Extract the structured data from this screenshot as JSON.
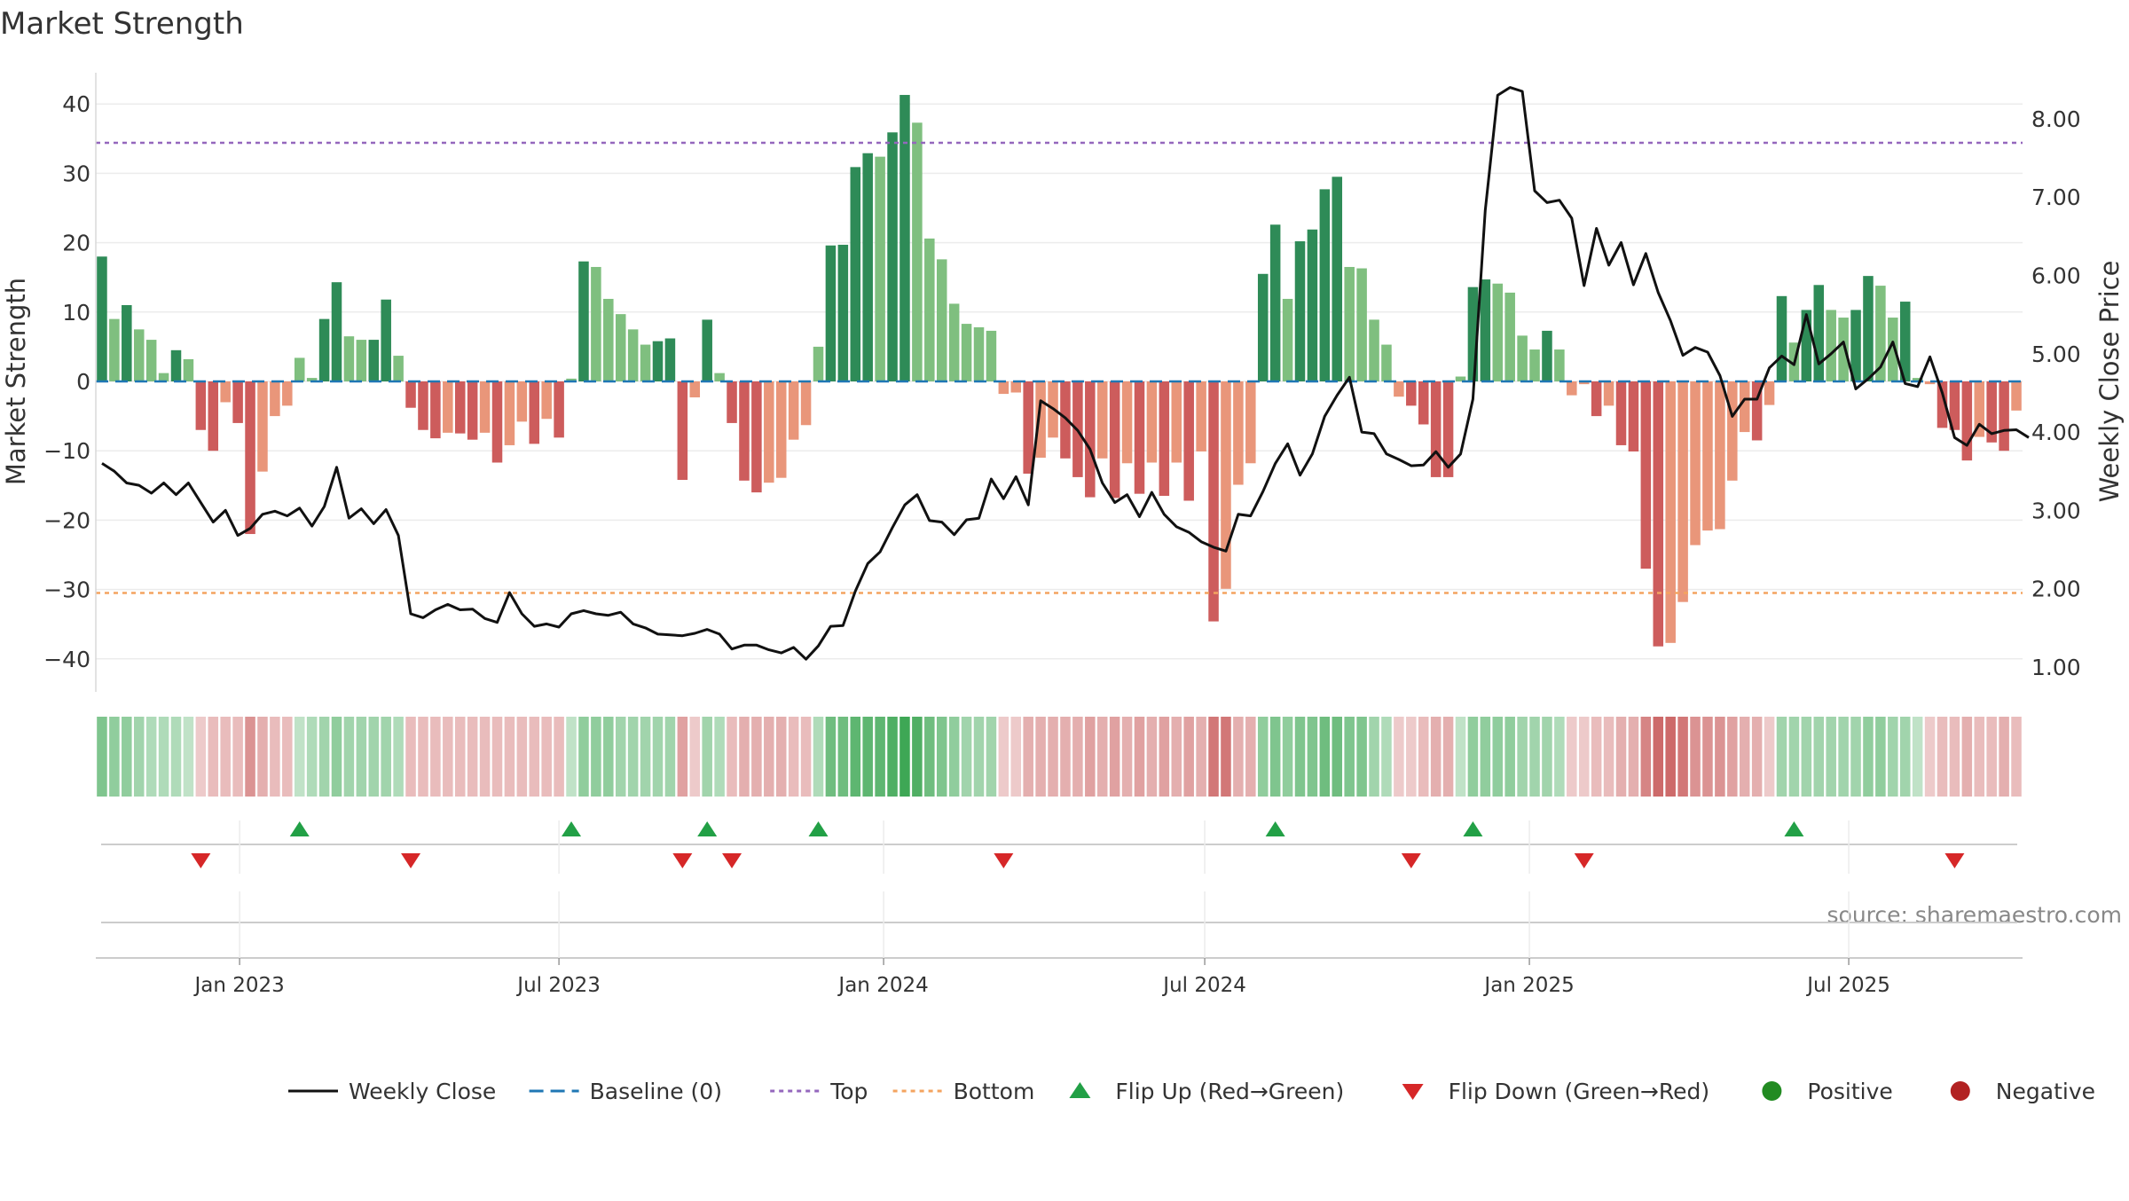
{
  "chart_data": {
    "type": "bar",
    "title": "Market Strength",
    "ylabel_left": "Market Strength",
    "ylabel_right": "Weekly Close Price",
    "source": "source: sharemaestro.com",
    "ylim_left": [
      -45,
      45
    ],
    "ylim_right": [
      0.7,
      8.6
    ],
    "yticks_left": [
      40,
      30,
      20,
      10,
      0,
      -10,
      -20,
      -30,
      -40
    ],
    "yticks_right": [
      "8.00",
      "7.00",
      "6.00",
      "5.00",
      "4.00",
      "3.00",
      "2.00",
      "1.00"
    ],
    "x_start": "2022-10-15",
    "x_step_days": 7,
    "x_ticks": [
      {
        "label": "Jan 2023",
        "date": "2023-01-01"
      },
      {
        "label": "Jul 2023",
        "date": "2023-07-01"
      },
      {
        "label": "Jan 2024",
        "date": "2024-01-01"
      },
      {
        "label": "Jul 2024",
        "date": "2024-07-01"
      },
      {
        "label": "Jan 2025",
        "date": "2025-01-01"
      },
      {
        "label": "Jul 2025",
        "date": "2025-07-01"
      }
    ],
    "top_line": 34.4,
    "bottom_line": -30.5,
    "grid": true,
    "legend_position": "bottom-center",
    "colors": {
      "pos_strong": "#2e8b57",
      "pos_weak": "#7fbf7f",
      "neg_strong": "#cd5c5c",
      "neg_weak": "#e9967a",
      "close_line": "#111111",
      "baseline": "#1f77b4",
      "top": "#9467bd",
      "bottom": "#f4a460",
      "flip_up": "#22a046",
      "flip_down": "#d62728",
      "positive": "#228b22",
      "negative": "#b22222"
    },
    "strength": [
      18,
      9,
      11,
      7.5,
      6,
      1.2,
      4.5,
      3.2,
      -7,
      -10,
      -3,
      -6,
      -22,
      -13,
      -5,
      -3.5,
      3.4,
      0.5,
      9,
      14.3,
      6.5,
      6,
      6,
      11.8,
      3.7,
      -3.8,
      -7,
      -8.2,
      -7.4,
      -7.5,
      -8.4,
      -7.4,
      -11.7,
      -9.2,
      -5.8,
      -9,
      -5.4,
      -8.1,
      0.4,
      17.3,
      16.5,
      11.9,
      9.7,
      7.5,
      5.3,
      5.8,
      6.2,
      -14.2,
      -2.3,
      8.9,
      1.2,
      -6,
      -14.3,
      -16,
      -14.6,
      -13.9,
      -8.4,
      -6.3,
      5,
      19.6,
      19.7,
      30.9,
      32.9,
      32.4,
      35.9,
      41.3,
      37.3,
      20.6,
      17.6,
      11.2,
      8.3,
      7.8,
      7.3,
      -1.8,
      -1.6,
      -13.3,
      -11,
      -8.1,
      -11.1,
      -13.8,
      -16.7,
      -11.1,
      -16.8,
      -11.8,
      -16.2,
      -11.7,
      -16.5,
      -11.7,
      -17.2,
      -10.1,
      -34.6,
      -29.9,
      -14.9,
      -11.8,
      15.5,
      22.6,
      11.9,
      20.2,
      21.9,
      27.7,
      29.5,
      16.5,
      16.3,
      8.9,
      5.3,
      -2.2,
      -3.5,
      -6.2,
      -13.8,
      -13.8,
      0.7,
      13.6,
      14.7,
      14.1,
      12.8,
      6.6,
      4.6,
      7.3,
      4.6,
      -2,
      -0.4,
      -5,
      -3.5,
      -9.2,
      -10.1,
      -27,
      -38.2,
      -37.7,
      -31.8,
      -23.6,
      -21.5,
      -21.3,
      -14.3,
      -7.3,
      -8.5,
      -3.4,
      12.3,
      5.6,
      10.3,
      13.9,
      10.3,
      9.2,
      10.3,
      15.2,
      13.8,
      9.2,
      11.5,
      0.5,
      -0.4,
      -6.7,
      -7,
      -11.4,
      -8,
      -8.8,
      -10,
      -4.2
    ],
    "close": [
      3.6,
      3.5,
      3.35,
      3.32,
      3.22,
      3.35,
      3.2,
      3.35,
      3.1,
      2.85,
      3.0,
      2.68,
      2.77,
      2.95,
      2.99,
      2.93,
      3.03,
      2.8,
      3.05,
      3.55,
      2.9,
      3.02,
      2.83,
      3.01,
      2.68,
      1.68,
      1.63,
      1.73,
      1.8,
      1.73,
      1.74,
      1.62,
      1.57,
      1.95,
      1.68,
      1.52,
      1.55,
      1.51,
      1.68,
      1.72,
      1.68,
      1.66,
      1.7,
      1.55,
      1.5,
      1.42,
      1.41,
      1.4,
      1.43,
      1.48,
      1.42,
      1.23,
      1.28,
      1.28,
      1.22,
      1.18,
      1.25,
      1.1,
      1.27,
      1.52,
      1.53,
      1.97,
      2.32,
      2.47,
      2.78,
      3.07,
      3.2,
      2.87,
      2.85,
      2.69,
      2.88,
      2.9,
      3.4,
      3.15,
      3.43,
      3.07,
      4.4,
      4.3,
      4.18,
      4.02,
      3.78,
      3.35,
      3.1,
      3.2,
      2.92,
      3.23,
      2.95,
      2.79,
      2.72,
      2.6,
      2.53,
      2.48,
      2.95,
      2.93,
      3.24,
      3.6,
      3.85,
      3.45,
      3.72,
      4.2,
      4.47,
      4.7,
      4.0,
      3.98,
      3.72,
      3.65,
      3.57,
      3.58,
      3.75,
      3.55,
      3.72,
      4.42,
      6.83,
      8.3,
      8.4,
      8.35,
      7.08,
      6.93,
      6.96,
      6.73,
      5.87,
      6.6,
      6.13,
      6.42,
      5.88,
      6.28,
      5.78,
      5.42,
      4.98,
      5.08,
      5.02,
      4.72,
      4.2,
      4.42,
      4.42,
      4.82,
      4.97,
      4.86,
      5.5,
      4.87,
      5.0,
      5.15,
      4.55,
      4.68,
      4.83,
      5.15,
      4.62,
      4.58,
      4.96,
      4.5,
      3.93,
      3.83,
      4.1,
      3.98,
      4.02,
      4.03,
      3.93
    ],
    "bands": [
      0.5,
      0.4,
      0.4,
      0.3,
      0.2,
      0.2,
      0.2,
      0.1,
      -0.1,
      -0.2,
      -0.2,
      -0.2,
      -0.5,
      -0.3,
      -0.2,
      -0.2,
      0.1,
      0.2,
      0.3,
      0.4,
      0.3,
      0.3,
      0.3,
      0.3,
      0.2,
      -0.2,
      -0.2,
      -0.2,
      -0.2,
      -0.2,
      -0.2,
      -0.2,
      -0.2,
      -0.2,
      -0.2,
      -0.2,
      -0.2,
      -0.2,
      0.1,
      0.4,
      0.4,
      0.4,
      0.3,
      0.3,
      0.3,
      0.3,
      0.3,
      -0.4,
      -0.1,
      0.3,
      0.2,
      -0.2,
      -0.3,
      -0.3,
      -0.3,
      -0.3,
      -0.2,
      -0.2,
      0.2,
      0.6,
      0.6,
      0.7,
      0.7,
      0.7,
      0.8,
      0.9,
      0.8,
      0.6,
      0.5,
      0.4,
      0.3,
      0.3,
      0.3,
      -0.1,
      -0.1,
      -0.3,
      -0.3,
      -0.3,
      -0.3,
      -0.3,
      -0.4,
      -0.3,
      -0.4,
      -0.3,
      -0.4,
      -0.3,
      -0.4,
      -0.3,
      -0.4,
      -0.3,
      -0.7,
      -0.7,
      -0.3,
      -0.3,
      0.4,
      0.5,
      0.4,
      0.5,
      0.5,
      0.6,
      0.6,
      0.5,
      0.5,
      0.3,
      0.2,
      -0.1,
      -0.1,
      -0.2,
      -0.3,
      -0.3,
      0.1,
      0.4,
      0.4,
      0.4,
      0.4,
      0.3,
      0.3,
      0.3,
      0.2,
      -0.1,
      -0.1,
      -0.2,
      -0.2,
      -0.3,
      -0.3,
      -0.6,
      -0.8,
      -0.8,
      -0.7,
      -0.5,
      -0.5,
      -0.5,
      -0.4,
      -0.3,
      -0.3,
      -0.1,
      0.3,
      0.3,
      0.3,
      0.3,
      0.3,
      0.3,
      0.3,
      0.4,
      0.4,
      0.3,
      0.3,
      0.1,
      -0.1,
      -0.2,
      -0.2,
      -0.3,
      -0.2,
      -0.2,
      -0.3,
      -0.2
    ],
    "flip_up_weeks": [
      16,
      38,
      49,
      58,
      95,
      111,
      137
    ],
    "flip_down_weeks": [
      8,
      25,
      47,
      51,
      73,
      106,
      120,
      150
    ],
    "legend": [
      {
        "label": "Weekly Close",
        "kind": "line"
      },
      {
        "label": "Baseline (0)",
        "kind": "dash"
      },
      {
        "label": "Top",
        "kind": "dot-purple"
      },
      {
        "label": "Bottom",
        "kind": "dot-orange"
      },
      {
        "label": "Flip Up (Red→Green)",
        "kind": "tri-up"
      },
      {
        "label": "Flip Down (Green→Red)",
        "kind": "tri-down"
      },
      {
        "label": "Positive",
        "kind": "circle-green"
      },
      {
        "label": "Negative",
        "kind": "circle-red"
      }
    ]
  }
}
